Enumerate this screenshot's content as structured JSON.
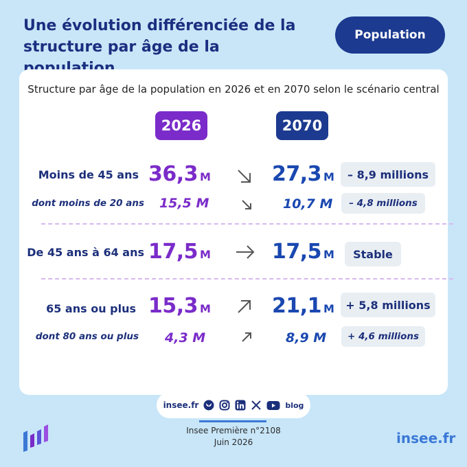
{
  "header": {
    "title": "Une évolution différenciée de la structure par âge de la population",
    "badge": "Population"
  },
  "card": {
    "title": "Structure par âge de la population en 2026 et en 2070 selon le scénario central",
    "year_a": "2026",
    "year_b": "2070"
  },
  "rows": [
    {
      "label": "Moins de 45 ans",
      "value_2026": "36,3",
      "unit_2026": "M",
      "value_2070": "27,3",
      "unit_2070": "M",
      "trend": "down",
      "change": "– 8,9 millions"
    },
    {
      "label": "dont moins de 20 ans",
      "value_2026": "15,5 M",
      "value_2070": "10,7 M",
      "trend": "down",
      "change": "– 4,8 millions"
    },
    {
      "label": "De 45 ans à 64 ans",
      "value_2026": "17,5",
      "unit_2026": "M",
      "value_2070": "17,5",
      "unit_2070": "M",
      "trend": "flat",
      "change": "Stable"
    },
    {
      "label": "65 ans ou plus",
      "value_2026": "15,3",
      "unit_2026": "M",
      "value_2070": "21,1",
      "unit_2070": "M",
      "trend": "up",
      "change": "+ 5,8 millions"
    },
    {
      "label": "dont 80 ans ou plus",
      "value_2026": "4,3 M",
      "value_2070": "8,9 M",
      "trend": "up",
      "change": "+ 4,6 millions"
    }
  ],
  "colors": {
    "year_2026": "#7a2bc9",
    "year_2070": "#1a48b0",
    "accent": "#1c3a8f"
  },
  "footer": {
    "site": "insee.fr",
    "social_icons": [
      "bluesky-icon",
      "instagram-icon",
      "linkedin-icon",
      "x-icon",
      "youtube-icon",
      "blog-icon"
    ],
    "blog_label": "blog",
    "publication": "Insee Première n°2108",
    "date": "Juin 2026",
    "brand": "insee.fr"
  }
}
